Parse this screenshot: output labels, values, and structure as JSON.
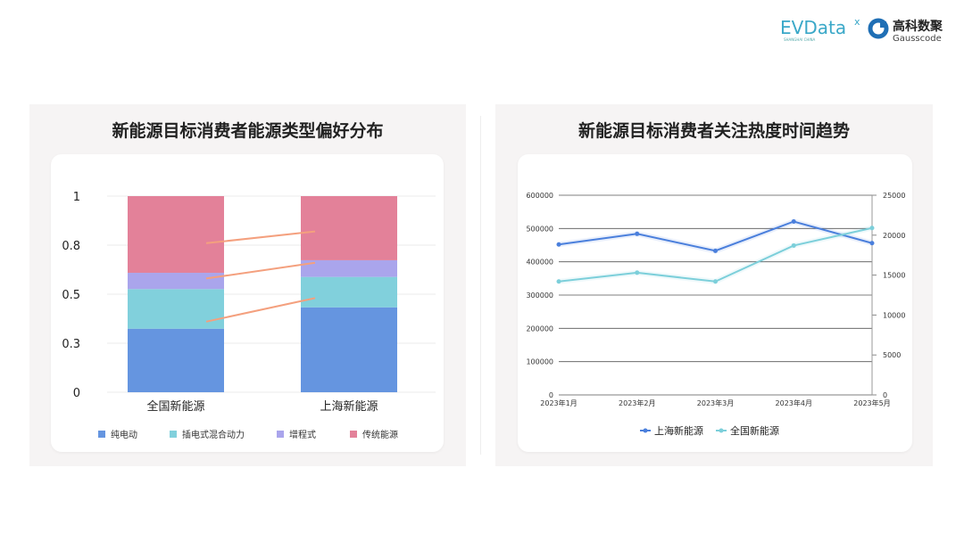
{
  "logos": {
    "evdata": "EVDatA",
    "evdata_sub": "SHANGHAI CHINA",
    "gauss_cn": "高科数聚",
    "gauss_en": "Gausscode"
  },
  "chart_data": [
    {
      "type": "bar",
      "stacked": true,
      "title": "新能源目标消费者能源类型偏好分布",
      "categories": [
        "全国新能源",
        "上海新能源"
      ],
      "series": [
        {
          "name": "纯电动",
          "values": [
            0.324,
            0.433
          ],
          "color": "#6595e0"
        },
        {
          "name": "插电式混合动力",
          "values": [
            0.202,
            0.155
          ],
          "color": "#81d0dc"
        },
        {
          "name": "增程式",
          "values": [
            0.083,
            0.085
          ],
          "color": "#aaa5ec"
        },
        {
          "name": "传统能源",
          "values": [
            0.391,
            0.327
          ],
          "color": "#e38199"
        }
      ],
      "ylim": [
        0,
        1
      ],
      "yticks": [
        0,
        0.25,
        0.5,
        0.75,
        1
      ],
      "ytick_labels": [
        "0",
        "0.3",
        "0.5",
        "0.8",
        "1"
      ],
      "grid": true,
      "legend": "bottom",
      "connector_color": "#f4a07e"
    },
    {
      "type": "line",
      "title": "新能源目标消费者关注热度时间趋势",
      "categories": [
        "2023年1月",
        "2023年2月",
        "2023年3月",
        "2023年4月",
        "2023年5月"
      ],
      "series": [
        {
          "name": "上海新能源",
          "axis": "left",
          "values": [
            452000,
            484000,
            433000,
            521000,
            456000
          ],
          "color": "#4a7fdc"
        },
        {
          "name": "全国新能源",
          "axis": "right",
          "values": [
            14200,
            15300,
            14200,
            18700,
            20900
          ],
          "color": "#7ccfda"
        }
      ],
      "ylim_left": [
        0,
        600000
      ],
      "yticks_left": [
        "0",
        "100000",
        "200000",
        "300000",
        "400000",
        "500000",
        "600000"
      ],
      "ylim_right": [
        0,
        25000
      ],
      "yticks_right": [
        "0",
        "5000",
        "10000",
        "15000",
        "20000",
        "25000"
      ],
      "grid": true,
      "legend": "bottom"
    }
  ]
}
